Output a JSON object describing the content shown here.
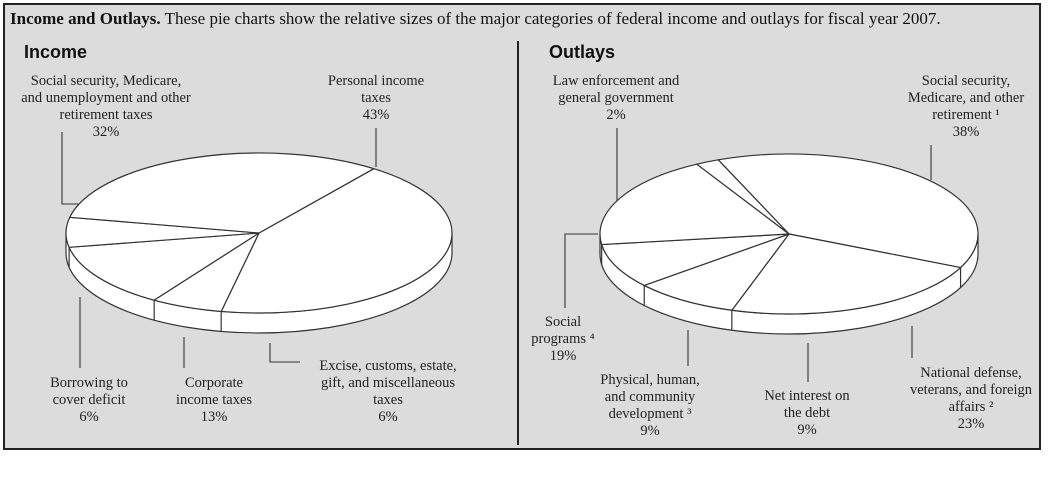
{
  "caption": {
    "bold": "Income and Outlays.",
    "text": " These pie charts show the relative sizes of the major categories of federal income and outlays for fiscal year 2007."
  },
  "chart_data": [
    {
      "type": "pie",
      "title": "Income",
      "slices": [
        {
          "label": [
            "Personal income",
            "taxes"
          ],
          "value": 43,
          "pct": "43%"
        },
        {
          "label": [
            "Excise, customs, estate,",
            "gift, and miscellaneous",
            "taxes"
          ],
          "value": 6,
          "pct": "6%"
        },
        {
          "label": [
            "Corporate",
            "income taxes"
          ],
          "value": 13,
          "pct": "13%"
        },
        {
          "label": [
            "Borrowing to",
            "cover deficit"
          ],
          "value": 6,
          "pct": "6%"
        },
        {
          "label": [
            "Social security, Medicare,",
            "and unemployment and other",
            "retirement taxes"
          ],
          "value": 32,
          "pct": "32%"
        }
      ]
    },
    {
      "type": "pie",
      "title": "Outlays",
      "slices": [
        {
          "label": [
            "Social security,",
            "Medicare, and other",
            "retirement ¹"
          ],
          "value": 38,
          "pct": "38%"
        },
        {
          "label": [
            "National defense,",
            "veterans, and foreign",
            "affairs ²"
          ],
          "value": 23,
          "pct": "23%"
        },
        {
          "label": [
            "Net interest on",
            "the debt"
          ],
          "value": 9,
          "pct": "9%"
        },
        {
          "label": [
            "Physical, human,",
            "and community",
            "development ³"
          ],
          "value": 9,
          "pct": "9%"
        },
        {
          "label": [
            "Social",
            "programs ⁴"
          ],
          "value": 19,
          "pct": "19%"
        },
        {
          "label": [
            "Law enforcement and",
            "general government"
          ],
          "value": 2,
          "pct": "2%"
        }
      ]
    }
  ]
}
